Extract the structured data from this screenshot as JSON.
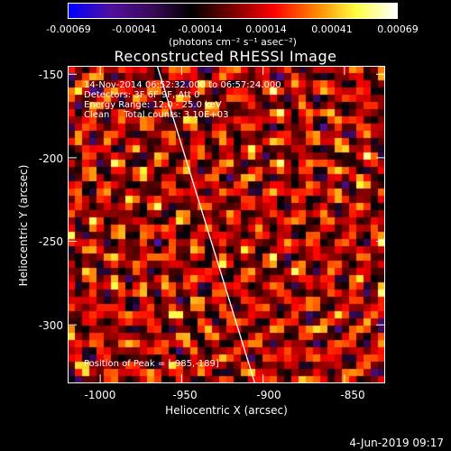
{
  "colorbar": {
    "ticks": [
      "-0.00069",
      "-0.00041",
      "-0.00014",
      "0.00014",
      "0.00041",
      "0.00069"
    ],
    "tick_values": [
      -0.00069,
      -0.00041,
      -0.00014,
      0.00014,
      0.00041,
      0.00069
    ],
    "range": [
      -0.00069,
      0.00069
    ],
    "unit_label": "(photons cm⁻² s⁻¹ asec⁻²)"
  },
  "annotations": {
    "time_range": "14-Nov-2014 06:52:32.000 to 06:57:24.000",
    "detectors": "Detectors: 3F 6F 9F, Att 0",
    "energy": "Energy Range: 12.0 - 25.0 keV",
    "counts": "Clean     Total counts: 3.10E+03",
    "peak": "Position of Peak = [-985,-189]"
  },
  "timestamp": "4-Jun-2019 09:17",
  "chart_data": {
    "type": "heatmap",
    "title": "Reconstructed RHESSI Image",
    "xlabel": "Heliocentric X (arcsec)",
    "ylabel": "Heliocentric Y (arcsec)",
    "xlim": [
      -1020,
      -825
    ],
    "ylim": [
      -335,
      -145
    ],
    "xticks": [
      -1000,
      -950,
      -900,
      -850
    ],
    "xtick_labels": [
      "-1000",
      "-950",
      "-900",
      "-850"
    ],
    "yticks": [
      -150,
      -200,
      -250,
      -300
    ],
    "ytick_labels": [
      "-150",
      "-200",
      "-250",
      "-300"
    ],
    "limb_line": [
      [
        -965,
        -145
      ],
      [
        -905,
        -335
      ]
    ],
    "colormap": [
      "#0000ff",
      "#5010a0",
      "#3a0a5c",
      "#000000",
      "#7a0000",
      "#ff0000",
      "#ff8000",
      "#ffff40",
      "#ffffff"
    ],
    "grid": false
  }
}
